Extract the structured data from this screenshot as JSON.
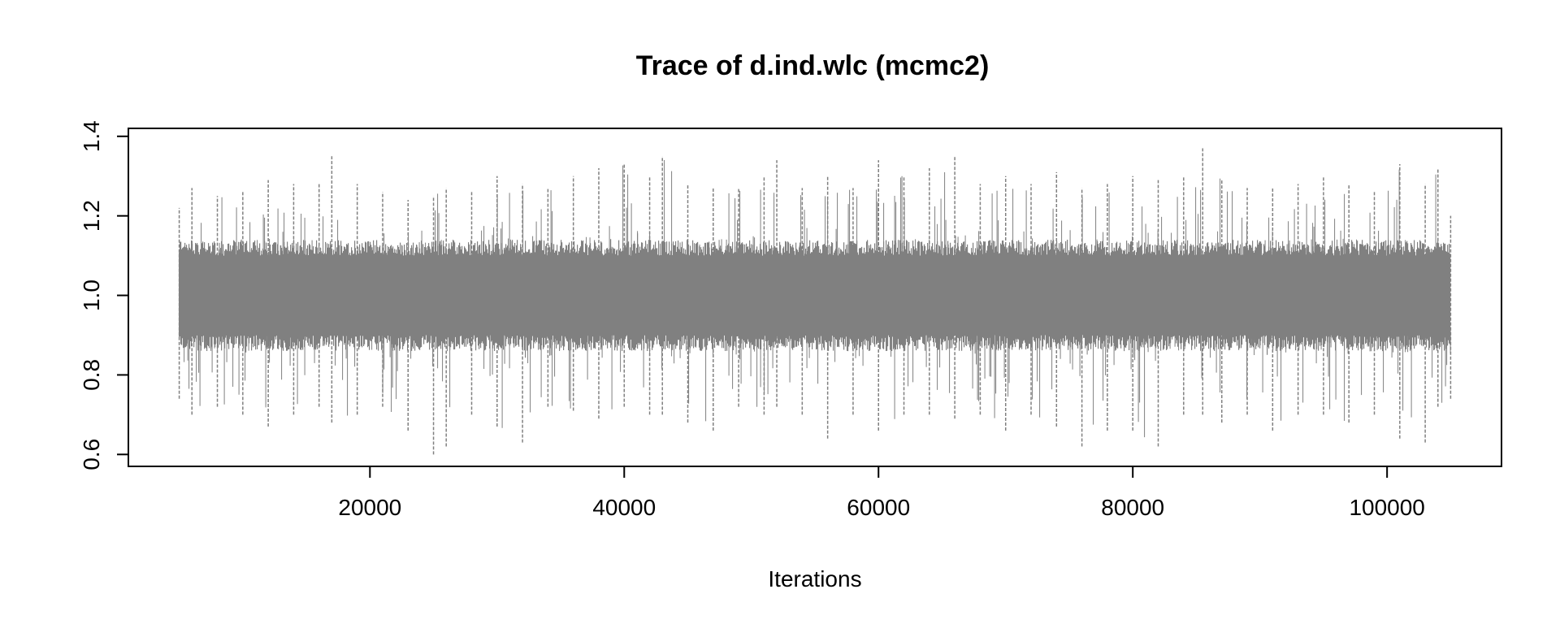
{
  "chart_data": {
    "type": "line",
    "title": "Trace of d.ind.wlc (mcmc2)",
    "xlabel": "Iterations",
    "ylabel": "",
    "xlim": [
      1000,
      109000
    ],
    "ylim": [
      0.57,
      1.42
    ],
    "x_ticks": [
      20000,
      40000,
      60000,
      80000,
      100000
    ],
    "x_tick_labels": [
      "20000",
      "40000",
      "60000",
      "80000",
      "100000"
    ],
    "y_ticks": [
      0.6,
      0.8,
      1.0,
      1.2,
      1.4
    ],
    "y_tick_labels": [
      "0.6",
      "0.8",
      "1.0",
      "1.2",
      "1.4"
    ],
    "grid": false,
    "legend": "none",
    "color": "#808080",
    "series": [
      {
        "values_range": {
          "x_start": 5000,
          "x_end": 105000
        },
        "envelope": [
          [
            5000,
            0.74,
            1.22
          ],
          [
            6000,
            0.7,
            1.27
          ],
          [
            8000,
            0.72,
            1.25
          ],
          [
            10000,
            0.7,
            1.26
          ],
          [
            12000,
            0.67,
            1.29
          ],
          [
            14000,
            0.7,
            1.28
          ],
          [
            16000,
            0.72,
            1.28
          ],
          [
            17000,
            0.68,
            1.35
          ],
          [
            19000,
            0.7,
            1.28
          ],
          [
            21000,
            0.72,
            1.26
          ],
          [
            23000,
            0.66,
            1.24
          ],
          [
            25000,
            0.6,
            1.25
          ],
          [
            26000,
            0.62,
            1.27
          ],
          [
            28000,
            0.7,
            1.26
          ],
          [
            30000,
            0.67,
            1.3
          ],
          [
            32000,
            0.63,
            1.28
          ],
          [
            34000,
            0.72,
            1.27
          ],
          [
            36000,
            0.71,
            1.3
          ],
          [
            38000,
            0.69,
            1.32
          ],
          [
            40000,
            0.72,
            1.33
          ],
          [
            42000,
            0.7,
            1.3
          ],
          [
            43000,
            0.7,
            1.35
          ],
          [
            45000,
            0.68,
            1.28
          ],
          [
            47000,
            0.66,
            1.27
          ],
          [
            49000,
            0.72,
            1.27
          ],
          [
            51000,
            0.7,
            1.3
          ],
          [
            52000,
            0.72,
            1.34
          ],
          [
            54000,
            0.7,
            1.27
          ],
          [
            56000,
            0.64,
            1.3
          ],
          [
            58000,
            0.7,
            1.27
          ],
          [
            60000,
            0.66,
            1.34
          ],
          [
            62000,
            0.7,
            1.3
          ],
          [
            64000,
            0.7,
            1.32
          ],
          [
            66000,
            0.69,
            1.35
          ],
          [
            68000,
            0.7,
            1.28
          ],
          [
            70000,
            0.66,
            1.3
          ],
          [
            72000,
            0.7,
            1.28
          ],
          [
            74000,
            0.67,
            1.31
          ],
          [
            76000,
            0.62,
            1.27
          ],
          [
            78000,
            0.66,
            1.28
          ],
          [
            80000,
            0.66,
            1.3
          ],
          [
            82000,
            0.62,
            1.29
          ],
          [
            84000,
            0.7,
            1.3
          ],
          [
            85500,
            0.7,
            1.37
          ],
          [
            87000,
            0.68,
            1.29
          ],
          [
            89000,
            0.7,
            1.27
          ],
          [
            91000,
            0.66,
            1.27
          ],
          [
            93000,
            0.7,
            1.28
          ],
          [
            95000,
            0.7,
            1.3
          ],
          [
            97000,
            0.68,
            1.28
          ],
          [
            99000,
            0.7,
            1.26
          ],
          [
            101000,
            0.64,
            1.33
          ],
          [
            103000,
            0.63,
            1.28
          ],
          [
            104000,
            0.72,
            1.32
          ],
          [
            105000,
            0.74,
            1.2
          ]
        ],
        "center": 1.0
      }
    ]
  }
}
